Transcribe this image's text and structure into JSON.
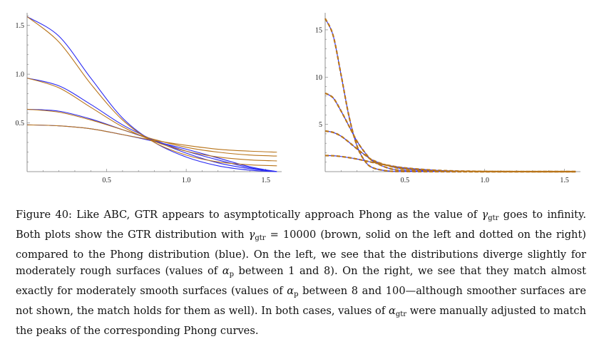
{
  "chart_data": [
    {
      "type": "line",
      "panel": "left",
      "x_range": [
        0,
        1.6
      ],
      "y_range": [
        0,
        1.6
      ],
      "x_ticks": [
        "0.5",
        "1.0",
        "1.5"
      ],
      "y_ticks": [
        "0.5",
        "1.0",
        "1.5"
      ],
      "series": [
        {
          "color": "#2a2af2",
          "family": "Phong",
          "peak": 1.59,
          "x": [
            0,
            0.2,
            0.4,
            0.6,
            0.8,
            1.0,
            1.2,
            1.4,
            1.57
          ],
          "y": [
            1.59,
            1.39,
            0.96,
            0.55,
            0.3,
            0.15,
            0.06,
            0.015,
            0.0
          ]
        },
        {
          "color": "#2a2af2",
          "family": "Phong",
          "peak": 0.96,
          "x": [
            0,
            0.2,
            0.4,
            0.6,
            0.8,
            1.0,
            1.2,
            1.4,
            1.57
          ],
          "y": [
            0.96,
            0.88,
            0.69,
            0.48,
            0.32,
            0.19,
            0.09,
            0.03,
            0.0
          ]
        },
        {
          "color": "#2a2af2",
          "family": "Phong",
          "peak": 0.64,
          "x": [
            0,
            0.2,
            0.4,
            0.6,
            0.8,
            1.0,
            1.2,
            1.4,
            1.57
          ],
          "y": [
            0.64,
            0.62,
            0.54,
            0.43,
            0.32,
            0.21,
            0.12,
            0.04,
            0.0
          ]
        },
        {
          "color": "#2a2af2",
          "family": "Phong",
          "peak": 0.48,
          "x": [
            0,
            0.2,
            0.4,
            0.6,
            0.8,
            1.0,
            1.2,
            1.4,
            1.57
          ],
          "y": [
            0.48,
            0.47,
            0.44,
            0.38,
            0.31,
            0.23,
            0.14,
            0.05,
            0.0
          ]
        },
        {
          "color": "#b8741a",
          "family": "GTR",
          "peak": 1.59,
          "x": [
            0,
            0.2,
            0.4,
            0.6,
            0.8,
            1.0,
            1.2,
            1.4,
            1.57
          ],
          "y": [
            1.59,
            1.33,
            0.9,
            0.53,
            0.3,
            0.17,
            0.1,
            0.07,
            0.06
          ]
        },
        {
          "color": "#b8741a",
          "family": "GTR",
          "peak": 0.96,
          "x": [
            0,
            0.2,
            0.4,
            0.6,
            0.8,
            1.0,
            1.2,
            1.4,
            1.57
          ],
          "y": [
            0.96,
            0.86,
            0.66,
            0.46,
            0.31,
            0.21,
            0.15,
            0.12,
            0.11
          ]
        },
        {
          "color": "#b8741a",
          "family": "GTR",
          "peak": 0.64,
          "x": [
            0,
            0.2,
            0.4,
            0.6,
            0.8,
            1.0,
            1.2,
            1.4,
            1.57
          ],
          "y": [
            0.64,
            0.61,
            0.53,
            0.43,
            0.33,
            0.25,
            0.2,
            0.17,
            0.16
          ]
        },
        {
          "color": "#b8741a",
          "family": "GTR",
          "peak": 0.48,
          "x": [
            0,
            0.2,
            0.4,
            0.6,
            0.8,
            1.0,
            1.2,
            1.4,
            1.57
          ],
          "y": [
            0.48,
            0.47,
            0.44,
            0.38,
            0.32,
            0.27,
            0.23,
            0.21,
            0.2
          ]
        }
      ]
    },
    {
      "type": "line",
      "panel": "right",
      "x_range": [
        0,
        1.6
      ],
      "y_range": [
        0,
        16.5
      ],
      "x_ticks": [
        "0.5",
        "1.0",
        "1.5"
      ],
      "y_ticks": [
        "5",
        "10",
        "15"
      ],
      "series": [
        {
          "color": "#2a2af2",
          "family": "Phong",
          "peak": 16.2,
          "x": [
            0,
            0.05,
            0.1,
            0.15,
            0.2,
            0.25,
            0.3,
            0.4,
            0.5,
            0.7,
            1.0,
            1.57
          ],
          "y": [
            16.2,
            14.4,
            10.2,
            5.8,
            2.7,
            1.1,
            0.4,
            0.06,
            0.01,
            0,
            0,
            0
          ]
        },
        {
          "color": "#2a2af2",
          "family": "Phong",
          "peak": 8.3,
          "x": [
            0,
            0.05,
            0.1,
            0.15,
            0.2,
            0.25,
            0.3,
            0.4,
            0.5,
            0.7,
            1.0,
            1.57
          ],
          "y": [
            8.3,
            7.8,
            6.4,
            4.8,
            3.2,
            2.0,
            1.1,
            0.35,
            0.1,
            0.01,
            0,
            0
          ]
        },
        {
          "color": "#2a2af2",
          "family": "Phong",
          "peak": 4.3,
          "x": [
            0,
            0.05,
            0.1,
            0.15,
            0.2,
            0.25,
            0.3,
            0.4,
            0.5,
            0.7,
            1.0,
            1.57
          ],
          "y": [
            4.3,
            4.15,
            3.75,
            3.1,
            2.4,
            1.75,
            1.2,
            0.6,
            0.28,
            0.05,
            0,
            0
          ]
        },
        {
          "color": "#2a2af2",
          "family": "Phong",
          "peak": 1.7,
          "x": [
            0,
            0.05,
            0.1,
            0.15,
            0.2,
            0.25,
            0.3,
            0.4,
            0.5,
            0.7,
            1.0,
            1.57
          ],
          "y": [
            1.7,
            1.68,
            1.6,
            1.48,
            1.33,
            1.15,
            0.97,
            0.65,
            0.4,
            0.14,
            0.02,
            0
          ]
        },
        {
          "color": "#b8741a",
          "family": "GTR",
          "dashed": true,
          "peak": 16.2,
          "x": [
            0,
            0.05,
            0.1,
            0.15,
            0.2,
            0.25,
            0.3,
            0.4,
            0.5,
            0.7,
            1.0,
            1.57
          ],
          "y": [
            16.2,
            14.4,
            10.2,
            5.8,
            2.7,
            1.1,
            0.4,
            0.06,
            0.01,
            0,
            0,
            0
          ]
        },
        {
          "color": "#b8741a",
          "family": "GTR",
          "dashed": true,
          "peak": 8.3,
          "x": [
            0,
            0.05,
            0.1,
            0.15,
            0.2,
            0.25,
            0.3,
            0.4,
            0.5,
            0.7,
            1.0,
            1.57
          ],
          "y": [
            8.3,
            7.8,
            6.4,
            4.8,
            3.2,
            2.0,
            1.1,
            0.35,
            0.1,
            0.01,
            0,
            0
          ]
        },
        {
          "color": "#b8741a",
          "family": "GTR",
          "dashed": true,
          "peak": 4.3,
          "x": [
            0,
            0.05,
            0.1,
            0.15,
            0.2,
            0.25,
            0.3,
            0.4,
            0.5,
            0.7,
            1.0,
            1.57
          ],
          "y": [
            4.3,
            4.15,
            3.75,
            3.1,
            2.4,
            1.75,
            1.2,
            0.6,
            0.28,
            0.05,
            0,
            0
          ]
        },
        {
          "color": "#b8741a",
          "family": "GTR",
          "dashed": true,
          "peak": 1.7,
          "x": [
            0,
            0.05,
            0.1,
            0.15,
            0.2,
            0.25,
            0.3,
            0.4,
            0.5,
            0.7,
            1.0,
            1.57
          ],
          "y": [
            1.7,
            1.68,
            1.6,
            1.48,
            1.33,
            1.15,
            0.97,
            0.65,
            0.4,
            0.14,
            0.02,
            0
          ]
        }
      ]
    }
  ],
  "caption": {
    "label": "Figure 40:",
    "t1": " Like ABC, GTR appears to asymptotically approach Phong as the value of ",
    "gamma": "γ",
    "gtr": "gtr",
    "t2": " goes to infinity. Both plots show the GTR distribution with ",
    "t3": " = 10000 (brown, solid on the left and dotted on the right) compared to the Phong distribution (blue). On the left, we see that the distributions diverge slightly for moderately rough surfaces (values of ",
    "alpha": "α",
    "p": "p",
    "t4": " between 1 and 8). On the right, we see that they match almost exactly for moderately smooth surfaces (values of ",
    "t5": " between 8 and 100—although smoother surfaces are not shown, the match holds for them as well). In both cases, values of ",
    "t6": " were manually adjusted to match the peaks of the corresponding Phong curves."
  }
}
